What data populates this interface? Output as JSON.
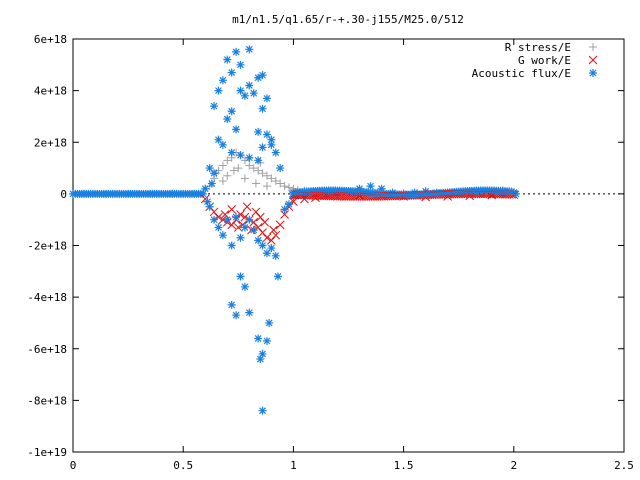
{
  "chart_data": {
    "type": "scatter",
    "title": "m1/n1.5/q1.65/r-+.30-j155/M25.0/512",
    "xlabel": "",
    "ylabel": "",
    "xlim": [
      0,
      2.5
    ],
    "ylim": [
      -1e+19,
      6e+18
    ],
    "xticks": [
      0,
      0.5,
      1,
      1.5,
      2,
      2.5
    ],
    "xtick_labels": [
      "0",
      "0.5",
      "1",
      "1.5",
      "2",
      "2.5"
    ],
    "yticks": [
      6e+18,
      4e+18,
      2e+18,
      0,
      -2e+18,
      -4e+18,
      -6e+18,
      -8e+18,
      -1e+19
    ],
    "ytick_labels": [
      "6e+18",
      "4e+18",
      "2e+18",
      "0",
      "-2e+18",
      "-4e+18",
      "-6e+18",
      "-8e+18",
      "-1e+19"
    ],
    "grid": false,
    "legend_position": "top-right",
    "series": [
      {
        "name": "R stress/E",
        "marker": "plus",
        "color": "#a0a0a0",
        "points": [
          [
            0.62,
            3e+17
          ],
          [
            0.64,
            6e+17
          ],
          [
            0.66,
            9e+17
          ],
          [
            0.68,
            1.1e+18
          ],
          [
            0.7,
            1.3e+18
          ],
          [
            0.72,
            1.4e+18
          ],
          [
            0.74,
            1.6e+18
          ],
          [
            0.76,
            1.5e+18
          ],
          [
            0.78,
            1.3e+18
          ],
          [
            0.8,
            1.1e+18
          ],
          [
            0.82,
            1e+18
          ],
          [
            0.84,
            9e+17
          ],
          [
            0.86,
            8e+17
          ],
          [
            0.88,
            7e+17
          ],
          [
            0.9,
            6e+17
          ],
          [
            0.92,
            5e+17
          ],
          [
            0.94,
            4e+17
          ],
          [
            0.96,
            3e+17
          ],
          [
            0.98,
            2.5e+17
          ],
          [
            1.0,
            2e+17
          ],
          [
            1.02,
            1.5e+17
          ],
          [
            1.05,
            1.2e+17
          ],
          [
            1.1,
            8e+16
          ],
          [
            1.15,
            5e+16
          ],
          [
            1.2,
            4e+16
          ],
          [
            1.3,
            6e+16
          ],
          [
            1.4,
            5e+16
          ],
          [
            1.5,
            3e+16
          ],
          [
            1.6,
            2e+16
          ],
          [
            1.7,
            3e+16
          ],
          [
            1.8,
            5e+16
          ],
          [
            1.9,
            1e+17
          ],
          [
            1.95,
            1.5e+17
          ],
          [
            2.0,
            5e+16
          ],
          [
            0.65,
            8e+17
          ],
          [
            0.7,
            7e+17
          ],
          [
            0.75,
            1e+18
          ],
          [
            0.8,
            1.4e+18
          ],
          [
            0.85,
            1.2e+18
          ],
          [
            0.68,
            5e+17
          ],
          [
            0.73,
            9e+17
          ],
          [
            0.78,
            6e+17
          ],
          [
            0.83,
            4e+17
          ],
          [
            0.88,
            3e+17
          ]
        ]
      },
      {
        "name": "G work/E",
        "marker": "cross",
        "color": "#e01010",
        "points": [
          [
            0.6,
            -2e+17
          ],
          [
            0.62,
            -5e+17
          ],
          [
            0.64,
            -7e+17
          ],
          [
            0.66,
            -9e+17
          ],
          [
            0.68,
            -1e+18
          ],
          [
            0.7,
            -1.1e+18
          ],
          [
            0.72,
            -1.2e+18
          ],
          [
            0.74,
            -1e+18
          ],
          [
            0.76,
            -8e+17
          ],
          [
            0.78,
            -9e+17
          ],
          [
            0.8,
            -1e+18
          ],
          [
            0.82,
            -1.1e+18
          ],
          [
            0.84,
            -1.3e+18
          ],
          [
            0.86,
            -1.5e+18
          ],
          [
            0.88,
            -1.7e+18
          ],
          [
            0.9,
            -1.8e+18
          ],
          [
            0.92,
            -1.6e+18
          ],
          [
            0.94,
            -1.2e+18
          ],
          [
            0.96,
            -8e+17
          ],
          [
            0.98,
            -5e+17
          ],
          [
            1.0,
            -3e+17
          ],
          [
            1.05,
            -2e+17
          ],
          [
            1.1,
            -1.5e+17
          ],
          [
            1.2,
            -1e+17
          ],
          [
            1.3,
            -5e+16
          ],
          [
            1.4,
            -8e+16
          ],
          [
            1.5,
            -1e+17
          ],
          [
            1.6,
            -1.2e+17
          ],
          [
            1.7,
            -1e+17
          ],
          [
            1.8,
            -8e+16
          ],
          [
            1.9,
            -5e+16
          ],
          [
            2.0,
            -3e+16
          ],
          [
            0.72,
            -6e+17
          ],
          [
            0.75,
            -1.3e+18
          ],
          [
            0.79,
            -5e+17
          ],
          [
            0.83,
            -7e+17
          ],
          [
            0.87,
            -1.1e+18
          ],
          [
            0.91,
            -1.4e+18
          ],
          [
            0.69,
            -8e+17
          ],
          [
            0.81,
            -1.4e+18
          ],
          [
            0.85,
            -9e+17
          ],
          [
            0.77,
            -1.2e+18
          ]
        ]
      },
      {
        "name": "Acoustic flux/E",
        "marker": "star",
        "color": "#1a80e0",
        "points": [
          [
            0.7,
            5.2e+18
          ],
          [
            0.74,
            5.5e+18
          ],
          [
            0.76,
            5e+18
          ],
          [
            0.8,
            5.6e+18
          ],
          [
            0.84,
            4.5e+18
          ],
          [
            0.86,
            4.6e+18
          ],
          [
            0.72,
            4.7e+18
          ],
          [
            0.68,
            4.4e+18
          ],
          [
            0.66,
            4e+18
          ],
          [
            0.64,
            3.4e+18
          ],
          [
            0.76,
            4e+18
          ],
          [
            0.78,
            3.8e+18
          ],
          [
            0.8,
            4.2e+18
          ],
          [
            0.82,
            3.9e+18
          ],
          [
            0.88,
            3.7e+18
          ],
          [
            0.86,
            3.3e+18
          ],
          [
            0.72,
            3.2e+18
          ],
          [
            0.7,
            2.9e+18
          ],
          [
            0.74,
            2.5e+18
          ],
          [
            0.84,
            2.4e+18
          ],
          [
            0.88,
            2.3e+18
          ],
          [
            0.9,
            2.1e+18
          ],
          [
            0.66,
            2.1e+18
          ],
          [
            0.68,
            1.9e+18
          ],
          [
            0.72,
            1.6e+18
          ],
          [
            0.76,
            1.5e+18
          ],
          [
            0.8,
            1.4e+18
          ],
          [
            0.84,
            1.3e+18
          ],
          [
            0.86,
            1.8e+18
          ],
          [
            0.9,
            1.9e+18
          ],
          [
            0.92,
            1.6e+18
          ],
          [
            0.94,
            1e+18
          ],
          [
            0.62,
            1e+18
          ],
          [
            0.64,
            8e+17
          ],
          [
            0.62,
            -5e+17
          ],
          [
            0.64,
            -1e+18
          ],
          [
            0.66,
            -1.3e+18
          ],
          [
            0.68,
            -1.6e+18
          ],
          [
            0.7,
            -1e+18
          ],
          [
            0.72,
            -2e+18
          ],
          [
            0.74,
            -9e+17
          ],
          [
            0.76,
            -1.7e+18
          ],
          [
            0.78,
            -1.3e+18
          ],
          [
            0.8,
            -1e+18
          ],
          [
            0.82,
            -1.4e+18
          ],
          [
            0.84,
            -1.8e+18
          ],
          [
            0.86,
            -2e+18
          ],
          [
            0.88,
            -2.3e+18
          ],
          [
            0.9,
            -2.1e+18
          ],
          [
            0.92,
            -2.4e+18
          ],
          [
            0.93,
            -3.2e+18
          ],
          [
            0.76,
            -3.2e+18
          ],
          [
            0.78,
            -3.6e+18
          ],
          [
            0.8,
            -4.6e+18
          ],
          [
            0.72,
            -4.3e+18
          ],
          [
            0.74,
            -4.7e+18
          ],
          [
            0.84,
            -5.6e+18
          ],
          [
            0.86,
            -6.2e+18
          ],
          [
            0.88,
            -5.7e+18
          ],
          [
            0.85,
            -6.4e+18
          ],
          [
            0.89,
            -5e+18
          ],
          [
            0.86,
            -8.4e+18
          ],
          [
            0.6,
            2e+17
          ],
          [
            0.61,
            -3e+17
          ],
          [
            0.63,
            4e+17
          ],
          [
            0.96,
            -6e+17
          ],
          [
            0.98,
            -4e+17
          ],
          [
            1.0,
            -1e+17
          ],
          [
            1.02,
            -5e+16
          ],
          [
            1.05,
            -6e+16
          ],
          [
            1.1,
            -5e+16
          ],
          [
            1.15,
            0.0
          ],
          [
            1.2,
            5e+16
          ],
          [
            1.25,
            1e+17
          ],
          [
            1.3,
            2e+17
          ],
          [
            1.35,
            3e+17
          ],
          [
            1.4,
            2e+17
          ],
          [
            1.45,
            5e+16
          ],
          [
            1.5,
            0.0
          ],
          [
            1.55,
            5e+16
          ],
          [
            1.6,
            1e+17
          ],
          [
            1.65,
            5e+16
          ],
          [
            1.7,
            0.0
          ],
          [
            1.75,
            5e+16
          ],
          [
            1.8,
            1e+17
          ],
          [
            1.85,
            1e+17
          ],
          [
            1.9,
            5e+16
          ],
          [
            1.95,
            0.0
          ],
          [
            2.0,
            5e+16
          ],
          [
            2.01,
            0.0
          ],
          [
            0.05,
            0.0
          ],
          [
            0.15,
            0.0
          ],
          [
            0.25,
            0.0
          ],
          [
            0.35,
            0.0
          ],
          [
            0.45,
            0.0
          ],
          [
            0.55,
            0.0
          ]
        ]
      }
    ]
  }
}
